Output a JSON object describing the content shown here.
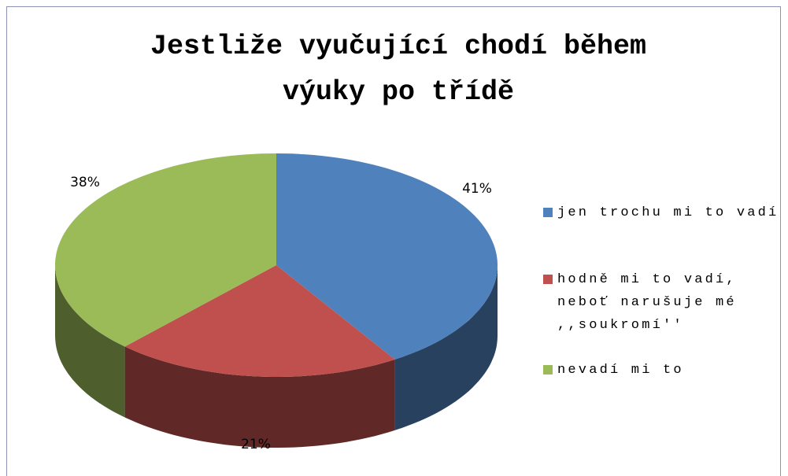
{
  "chart_data": {
    "type": "pie3d",
    "title": "Jestliže vyučující chodí během výuky po třídě",
    "categories": [
      "jen trochu mi to vadí",
      "hodně mi to vadí, neboť narušuje mé ,,soukromí''",
      "nevadí mi to"
    ],
    "values": [
      41,
      21,
      38
    ],
    "value_labels": [
      "41%",
      "21%",
      "38%"
    ],
    "colors": [
      "#4f81bd",
      "#c0504d",
      "#9bbb59"
    ],
    "legend": "right"
  }
}
